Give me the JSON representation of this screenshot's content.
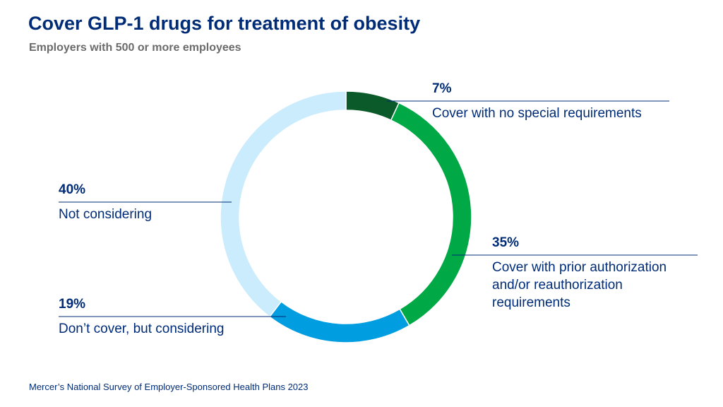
{
  "chart_data": {
    "type": "pie",
    "title": "Cover GLP-1 drugs for treatment of obesity",
    "subtitle": "Employers with 500 or more employees",
    "source": "Mercer’s National Survey of Employer-Sponsored Health Plans 2023",
    "categories": [
      "Cover with no special requirements",
      "Cover with prior authorization and/or reauthorization requirements",
      "Don’t cover, but considering",
      "Not considering"
    ],
    "values": [
      7,
      35,
      19,
      40
    ],
    "value_labels": [
      "7%",
      "35%",
      "19%",
      "40%"
    ],
    "colors": [
      "#0b5a2a",
      "#00a846",
      "#009de0",
      "#cbecfc"
    ],
    "donut": true
  }
}
